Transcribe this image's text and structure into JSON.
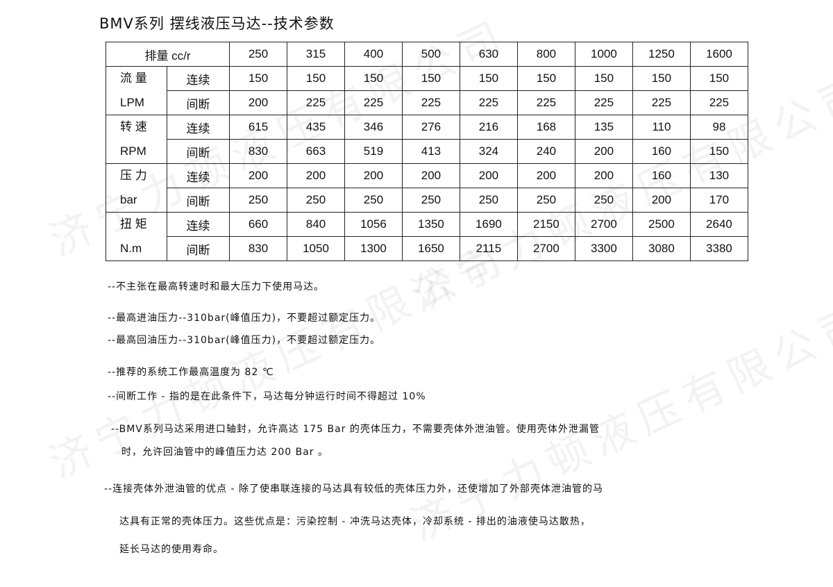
{
  "title": "BMV系列 摆线液压马达--技术参数",
  "watermark": "济宁力顿液压有限公司",
  "table": {
    "header_label": "排量 cc/r",
    "displacements": [
      "250",
      "315",
      "400",
      "500",
      "630",
      "800",
      "1000",
      "1250",
      "1600"
    ],
    "groups": [
      {
        "name": "流 量",
        "unit": "LPM",
        "rows": [
          {
            "label": "连续",
            "values": [
              "150",
              "150",
              "150",
              "150",
              "150",
              "150",
              "150",
              "150",
              "150"
            ]
          },
          {
            "label": "间断",
            "values": [
              "200",
              "225",
              "225",
              "225",
              "225",
              "225",
              "225",
              "225",
              "225"
            ]
          }
        ]
      },
      {
        "name": "转 速",
        "unit": "RPM",
        "rows": [
          {
            "label": "连续",
            "values": [
              "615",
              "435",
              "346",
              "276",
              "216",
              "168",
              "135",
              "110",
              "98"
            ]
          },
          {
            "label": "间断",
            "values": [
              "830",
              "663",
              "519",
              "413",
              "324",
              "240",
              "200",
              "160",
              "150"
            ]
          }
        ]
      },
      {
        "name": "压 力",
        "unit": "bar",
        "rows": [
          {
            "label": "连续",
            "values": [
              "200",
              "200",
              "200",
              "200",
              "200",
              "200",
              "200",
              "160",
              "130"
            ]
          },
          {
            "label": "间断",
            "values": [
              "250",
              "250",
              "250",
              "250",
              "250",
              "250",
              "250",
              "200",
              "170"
            ]
          }
        ]
      },
      {
        "name": "扭 矩",
        "unit": "N.m",
        "rows": [
          {
            "label": "连续",
            "values": [
              "660",
              "840",
              "1056",
              "1350",
              "1690",
              "2150",
              "2700",
              "2500",
              "2640"
            ]
          },
          {
            "label": "间断",
            "values": [
              "830",
              "1050",
              "1300",
              "1650",
              "2115",
              "2700",
              "3300",
              "3080",
              "3380"
            ]
          }
        ]
      }
    ]
  },
  "notes": [
    "--不主张在最高转速时和最大压力下使用马达。",
    "--最高进油压力--310bar(峰值压力)，不要超过额定压力。",
    "--最高回油压力--310bar(峰值压力)，不要超过额定压力。",
    "--推荐的系统工作最高温度为 82 ℃",
    "--间断工作 - 指的是在此条件下，马达每分钟运行时间不得超过 10%",
    "--BMV系列马达采用进口轴封，允许高达 175 Bar 的壳体压力，不需要壳体外泄油管。使用壳体外泄漏管",
    "时，允许回油管中的峰值压力达 200 Bar 。",
    "--连接壳体外泄油管的优点 - 除了使串联连接的马达具有较低的壳体压力外，还使增加了外部壳体泄油管的马",
    "达具有正常的壳体压力。这些优点是：污染控制 - 冲洗马达壳体，冷却系统 - 排出的油液使马达散热，",
    "延长马达的使用寿命。"
  ]
}
